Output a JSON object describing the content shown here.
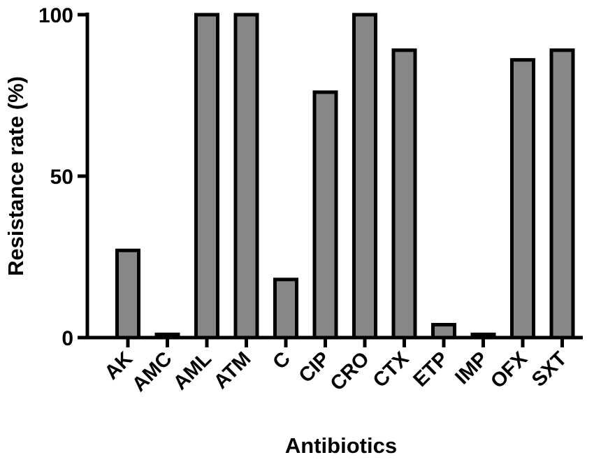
{
  "chart_data": {
    "type": "bar",
    "categories": [
      "AK",
      "AMC",
      "AML",
      "ATM",
      "C",
      "CIP",
      "CRO",
      "CTX",
      "ETP",
      "IMP",
      "OFX",
      "SXT"
    ],
    "values": [
      27,
      1,
      100,
      100,
      18,
      76,
      100,
      89,
      4,
      1,
      86,
      89
    ],
    "xlabel": "Antibiotics",
    "ylabel": "Resistance rate (%)",
    "ylim": [
      0,
      100
    ],
    "yticks": [
      0,
      50,
      100
    ],
    "grid": false,
    "legend": "none",
    "colors": {
      "bar_fill": "#878787",
      "bar_stroke": "#000000",
      "axis": "#000000"
    }
  }
}
